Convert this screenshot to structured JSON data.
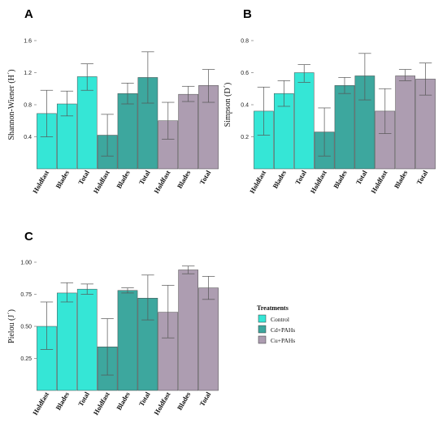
{
  "chart_data": [
    {
      "panel": "A",
      "type": "bar",
      "ylabel": "Shannon-Wiener (H´)",
      "ylim": [
        0,
        1.6
      ],
      "yticks": [
        "0.4",
        "0.8",
        "1.2",
        "1.6"
      ],
      "categories": [
        "Holdfast",
        "Blades",
        "Total",
        "Holdfast",
        "Blades",
        "Total",
        "Holdfast",
        "Blades",
        "Total"
      ],
      "groups": [
        "Control",
        "Control",
        "Control",
        "Cd+PAHs",
        "Cd+PAHs",
        "Cd+PAHs",
        "Cu+PAHs",
        "Cu+PAHs",
        "Cu+PAHs"
      ],
      "values": [
        0.69,
        0.81,
        1.15,
        0.42,
        0.94,
        1.14,
        0.6,
        0.93,
        1.04
      ],
      "error_low": [
        0.4,
        0.66,
        0.98,
        0.16,
        0.81,
        0.82,
        0.37,
        0.84,
        0.83
      ],
      "error_high": [
        0.98,
        0.97,
        1.31,
        0.68,
        1.07,
        1.46,
        0.83,
        1.03,
        1.24
      ]
    },
    {
      "panel": "B",
      "type": "bar",
      "ylabel": "Simpson (D´)",
      "ylim": [
        0.0,
        0.8
      ],
      "yticks": [
        "0.2",
        "0.4",
        "0.6",
        "0.8"
      ],
      "categories": [
        "Holdfast",
        "Blades",
        "Total",
        "Holdfast",
        "Blades",
        "Total",
        "Holdfast",
        "Blades",
        "Total"
      ],
      "groups": [
        "Control",
        "Control",
        "Control",
        "Cd+PAHs",
        "Cd+PAHs",
        "Cd+PAHs",
        "Cu+PAHs",
        "Cu+PAHs",
        "Cu+PAHs"
      ],
      "values": [
        0.36,
        0.47,
        0.6,
        0.23,
        0.52,
        0.58,
        0.36,
        0.58,
        0.56
      ],
      "error_low": [
        0.21,
        0.39,
        0.54,
        0.08,
        0.47,
        0.43,
        0.22,
        0.55,
        0.46
      ],
      "error_high": [
        0.51,
        0.55,
        0.65,
        0.38,
        0.57,
        0.72,
        0.5,
        0.62,
        0.66
      ]
    },
    {
      "panel": "C",
      "type": "bar",
      "ylabel": "Pielou (J´)",
      "ylim": [
        0.0,
        1.0
      ],
      "yticks": [
        "0.25",
        "0.50",
        "0.75",
        "1.00"
      ],
      "categories": [
        "Holdfast",
        "Blades",
        "Total",
        "Holdfast",
        "Blades",
        "Total",
        "Holdfast",
        "Blades",
        "Total"
      ],
      "groups": [
        "Control",
        "Control",
        "Control",
        "Cd+PAHs",
        "Cd+PAHs",
        "Cd+PAHs",
        "Cu+PAHs",
        "Cu+PAHs",
        "Cu+PAHs"
      ],
      "values": [
        0.5,
        0.76,
        0.79,
        0.34,
        0.78,
        0.72,
        0.61,
        0.94,
        0.8
      ],
      "error_low": [
        0.32,
        0.69,
        0.75,
        0.12,
        0.76,
        0.55,
        0.41,
        0.91,
        0.71
      ],
      "error_high": [
        0.69,
        0.84,
        0.83,
        0.56,
        0.8,
        0.9,
        0.82,
        0.97,
        0.89
      ]
    }
  ],
  "legend": {
    "title": "Treatments",
    "items": [
      {
        "label": "Control",
        "color": "#35e6d6"
      },
      {
        "label": "Cd+PAHs",
        "color": "#3da79e"
      },
      {
        "label": "Cu+PAHs",
        "color": "#ad9db1"
      }
    ]
  },
  "colors": {
    "Control": "#35e6d6",
    "Cd+PAHs": "#3da79e",
    "Cu+PAHs": "#ad9db1"
  }
}
